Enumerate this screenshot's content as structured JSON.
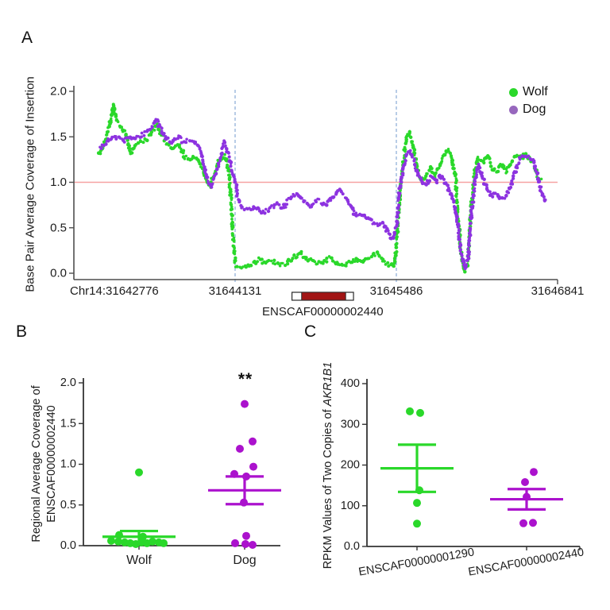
{
  "panels": {
    "a": {
      "letter": "A"
    },
    "b": {
      "letter": "B"
    },
    "c": {
      "letter": "C"
    }
  },
  "colors": {
    "wolf_green": "#2ad82a",
    "dog_trace_purple": "#8d33e0",
    "dog_legend_purple": "#9767bd",
    "dog_magenta": "#ab12cd",
    "reference_red": "#f6a2a2",
    "boundary_dashed_blue": "#7fa3d1",
    "gene_box_red": "#a11414",
    "axis_gray": "#4f4f4f"
  },
  "chart_data": [
    {
      "id": "A",
      "type": "line",
      "ylabel": "Base Pair Average Coverage of Insertion",
      "ylim": [
        0,
        2
      ],
      "xlim": [
        31642776,
        31646841
      ],
      "grid": false,
      "legend_position": "top-right",
      "reference_line_y": 1.0,
      "insertion_boundaries": [
        31644131,
        31645486
      ],
      "yticks": [
        {
          "label": "2.0",
          "value": 2.0
        },
        {
          "label": "1.5",
          "value": 1.5
        },
        {
          "label": "1.0",
          "value": 1.0
        },
        {
          "label": "0.5",
          "value": 0.5
        },
        {
          "label": "0.0",
          "value": 0.0
        }
      ],
      "xticks": [
        {
          "label": "Chr14:31642776",
          "pos": 31642776,
          "anchor": "start"
        },
        {
          "label": "31644131",
          "pos": 31644131,
          "anchor": "middle"
        },
        {
          "label": "31645486",
          "pos": 31645486,
          "anchor": "middle"
        },
        {
          "label": "31646841",
          "pos": 31646841,
          "anchor": "middle"
        }
      ],
      "legend": [
        {
          "label": "Wolf",
          "color": "#2ad82a"
        },
        {
          "label": "Dog",
          "color": "#9767bd"
        }
      ],
      "gene_track": {
        "label": "ENSCAF00000002440",
        "start": 31644609,
        "end": 31645126,
        "cds_start": 31644690,
        "cds_end": 31645060
      },
      "series": [
        {
          "name": "Wolf",
          "color": "#2ad82a",
          "points": [
            [
              31642991,
              1.3
            ],
            [
              31643040,
              1.45
            ],
            [
              31643085,
              1.7
            ],
            [
              31643109,
              1.85
            ],
            [
              31643138,
              1.67
            ],
            [
              31643174,
              1.6
            ],
            [
              31643215,
              1.52
            ],
            [
              31643252,
              1.32
            ],
            [
              31643292,
              1.42
            ],
            [
              31643341,
              1.45
            ],
            [
              31643394,
              1.48
            ],
            [
              31643435,
              1.55
            ],
            [
              31643471,
              1.63
            ],
            [
              31643508,
              1.52
            ],
            [
              31643556,
              1.42
            ],
            [
              31643609,
              1.38
            ],
            [
              31643658,
              1.42
            ],
            [
              31643707,
              1.28
            ],
            [
              31643756,
              1.25
            ],
            [
              31643804,
              1.28
            ],
            [
              31643853,
              1.18
            ],
            [
              31643890,
              1.02
            ],
            [
              31643922,
              0.95
            ],
            [
              31643963,
              1.12
            ],
            [
              31644008,
              1.27
            ],
            [
              31644044,
              1.3
            ],
            [
              31644077,
              1.12
            ],
            [
              31644101,
              0.72
            ],
            [
              31644117,
              0.35
            ],
            [
              31644131,
              0.1
            ],
            [
              31644154,
              0.05
            ],
            [
              31644211,
              0.07
            ],
            [
              31644272,
              0.1
            ],
            [
              31644329,
              0.15
            ],
            [
              31644390,
              0.12
            ],
            [
              31644447,
              0.13
            ],
            [
              31644508,
              0.1
            ],
            [
              31644565,
              0.11
            ],
            [
              31644626,
              0.18
            ],
            [
              31644682,
              0.22
            ],
            [
              31644743,
              0.15
            ],
            [
              31644800,
              0.11
            ],
            [
              31644861,
              0.12
            ],
            [
              31644918,
              0.17
            ],
            [
              31644979,
              0.12
            ],
            [
              31645036,
              0.08
            ],
            [
              31645097,
              0.12
            ],
            [
              31645154,
              0.15
            ],
            [
              31645215,
              0.13
            ],
            [
              31645272,
              0.18
            ],
            [
              31645325,
              0.21
            ],
            [
              31645374,
              0.13
            ],
            [
              31645435,
              0.08
            ],
            [
              31645471,
              0.1
            ],
            [
              31645486,
              0.3
            ],
            [
              31645508,
              0.7
            ],
            [
              31645540,
              1.2
            ],
            [
              31645573,
              1.5
            ],
            [
              31645593,
              1.55
            ],
            [
              31645626,
              1.4
            ],
            [
              31645658,
              1.18
            ],
            [
              31645691,
              1.02
            ],
            [
              31645731,
              1.05
            ],
            [
              31645772,
              1.15
            ],
            [
              31645808,
              1.08
            ],
            [
              31645849,
              1.18
            ],
            [
              31645890,
              1.3
            ],
            [
              31645922,
              1.36
            ],
            [
              31645955,
              1.25
            ],
            [
              31645983,
              1.05
            ],
            [
              31646008,
              0.55
            ],
            [
              31646036,
              0.12
            ],
            [
              31646061,
              0.02
            ],
            [
              31646089,
              0.1
            ],
            [
              31646113,
              0.7
            ],
            [
              31646142,
              1.1
            ],
            [
              31646174,
              1.28
            ],
            [
              31646211,
              1.22
            ],
            [
              31646252,
              1.3
            ],
            [
              31646292,
              1.15
            ],
            [
              31646333,
              1.12
            ],
            [
              31646369,
              1.2
            ],
            [
              31646410,
              1.12
            ],
            [
              31646451,
              1.22
            ],
            [
              31646491,
              1.3
            ],
            [
              31646528,
              1.27
            ],
            [
              31646569,
              1.3
            ],
            [
              31646609,
              1.26
            ],
            [
              31646642,
              1.18
            ],
            [
              31646674,
              1.08
            ],
            [
              31646707,
              1.0
            ]
          ]
        },
        {
          "name": "Dog",
          "color": "#8d33e0",
          "points": [
            [
              31642991,
              1.38
            ],
            [
              31643040,
              1.42
            ],
            [
              31643089,
              1.48
            ],
            [
              31643138,
              1.5
            ],
            [
              31643191,
              1.44
            ],
            [
              31643239,
              1.5
            ],
            [
              31643288,
              1.46
            ],
            [
              31643337,
              1.52
            ],
            [
              31643386,
              1.55
            ],
            [
              31643430,
              1.6
            ],
            [
              31643467,
              1.68
            ],
            [
              31643504,
              1.6
            ],
            [
              31643544,
              1.48
            ],
            [
              31643597,
              1.45
            ],
            [
              31643646,
              1.5
            ],
            [
              31643695,
              1.45
            ],
            [
              31643743,
              1.47
            ],
            [
              31643792,
              1.43
            ],
            [
              31643829,
              1.4
            ],
            [
              31643865,
              1.22
            ],
            [
              31643902,
              1.02
            ],
            [
              31643934,
              0.96
            ],
            [
              31643971,
              1.1
            ],
            [
              31644008,
              1.28
            ],
            [
              31644040,
              1.44
            ],
            [
              31644069,
              1.32
            ],
            [
              31644101,
              1.15
            ],
            [
              31644131,
              1.0
            ],
            [
              31644162,
              0.8
            ],
            [
              31644191,
              0.72
            ],
            [
              31644239,
              0.7
            ],
            [
              31644300,
              0.73
            ],
            [
              31644357,
              0.66
            ],
            [
              31644418,
              0.71
            ],
            [
              31644475,
              0.76
            ],
            [
              31644536,
              0.72
            ],
            [
              31644593,
              0.83
            ],
            [
              31644654,
              0.87
            ],
            [
              31644711,
              0.78
            ],
            [
              31644772,
              0.74
            ],
            [
              31644829,
              0.8
            ],
            [
              31644890,
              0.75
            ],
            [
              31644947,
              0.83
            ],
            [
              31645008,
              0.9
            ],
            [
              31645052,
              0.85
            ],
            [
              31645097,
              0.76
            ],
            [
              31645142,
              0.64
            ],
            [
              31645199,
              0.66
            ],
            [
              31645260,
              0.6
            ],
            [
              31645317,
              0.53
            ],
            [
              31645369,
              0.56
            ],
            [
              31645418,
              0.45
            ],
            [
              31645455,
              0.38
            ],
            [
              31645486,
              0.5
            ],
            [
              31645512,
              0.9
            ],
            [
              31645544,
              1.15
            ],
            [
              31645577,
              1.3
            ],
            [
              31645597,
              1.35
            ],
            [
              31645630,
              1.25
            ],
            [
              31645666,
              1.1
            ],
            [
              31645699,
              1.0
            ],
            [
              31645735,
              0.98
            ],
            [
              31645776,
              1.05
            ],
            [
              31645817,
              1.0
            ],
            [
              31645857,
              1.08
            ],
            [
              31645894,
              1.0
            ],
            [
              31645930,
              0.9
            ],
            [
              31645963,
              0.8
            ],
            [
              31645995,
              0.6
            ],
            [
              31646028,
              0.25
            ],
            [
              31646061,
              0.05
            ],
            [
              31646089,
              0.15
            ],
            [
              31646113,
              0.6
            ],
            [
              31646146,
              1.0
            ],
            [
              31646178,
              1.2
            ],
            [
              31646211,
              1.05
            ],
            [
              31646247,
              0.92
            ],
            [
              31646284,
              0.85
            ],
            [
              31646324,
              0.88
            ],
            [
              31646365,
              0.82
            ],
            [
              31646406,
              0.85
            ],
            [
              31646442,
              0.95
            ],
            [
              31646483,
              1.1
            ],
            [
              31646524,
              1.25
            ],
            [
              31646565,
              1.3
            ],
            [
              31646601,
              1.27
            ],
            [
              31646642,
              1.22
            ],
            [
              31646674,
              1.05
            ],
            [
              31646715,
              0.85
            ],
            [
              31646739,
              0.77
            ]
          ]
        }
      ]
    },
    {
      "id": "B",
      "type": "scatter",
      "ylabel_lines": [
        "Regional Average Coverage of",
        "ENSCAF00000002440"
      ],
      "ylim": [
        0,
        2
      ],
      "grid": false,
      "yticks": [
        {
          "label": "0.0",
          "value": 0.0
        },
        {
          "label": "0.5",
          "value": 0.5
        },
        {
          "label": "1.0",
          "value": 1.0
        },
        {
          "label": "1.5",
          "value": 1.5
        },
        {
          "label": "2.0",
          "value": 2.0
        }
      ],
      "groups": [
        {
          "name": "Wolf",
          "color": "#2ad82a",
          "mean": 0.11,
          "sem_low": 0.04,
          "sem_high": 0.18,
          "points": [
            [
              0.9,
              0
            ],
            [
              0.13,
              -25
            ],
            [
              0.11,
              5
            ],
            [
              0.06,
              -35
            ],
            [
              0.05,
              -26
            ],
            [
              0.04,
              -18
            ],
            [
              0.03,
              -11
            ],
            [
              0.02,
              -4
            ],
            [
              0.04,
              3
            ],
            [
              0.03,
              10
            ],
            [
              0.05,
              17
            ],
            [
              0.04,
              25
            ],
            [
              0.03,
              31
            ]
          ]
        },
        {
          "name": "Dog",
          "color": "#ab12cd",
          "mean": 0.68,
          "sem_low": 0.51,
          "sem_high": 0.85,
          "significance": "**",
          "points": [
            [
              1.74,
              0
            ],
            [
              1.28,
              10
            ],
            [
              1.19,
              -6
            ],
            [
              0.97,
              11
            ],
            [
              0.88,
              -13
            ],
            [
              0.85,
              2
            ],
            [
              0.53,
              -1
            ],
            [
              0.12,
              2
            ],
            [
              0.03,
              -12
            ],
            [
              0.02,
              1
            ],
            [
              0.01,
              10
            ]
          ]
        }
      ]
    },
    {
      "id": "C",
      "type": "scatter",
      "ylabel_prefix": "RPKM Values of Two Copies of ",
      "ylabel_gene": "AKR1B1",
      "ylim": [
        0,
        400
      ],
      "grid": false,
      "yticks": [
        {
          "label": "0.0",
          "value": 0
        },
        {
          "label": "100",
          "value": 100
        },
        {
          "label": "200",
          "value": 200
        },
        {
          "label": "300",
          "value": 300
        },
        {
          "label": "400",
          "value": 400
        }
      ],
      "groups": [
        {
          "name": "ENSCAF00000001290",
          "color": "#2ad82a",
          "mean": 192,
          "sem_low": 134,
          "sem_high": 250,
          "points": [
            [
              332,
              -9
            ],
            [
              328,
              4
            ],
            [
              138,
              3
            ],
            [
              107,
              0
            ],
            [
              56,
              0
            ]
          ]
        },
        {
          "name": "ENSCAF00000002440",
          "color": "#ab12cd",
          "mean": 116,
          "sem_low": 91,
          "sem_high": 141,
          "points": [
            [
              183,
              9
            ],
            [
              158,
              -2
            ],
            [
              122,
              0
            ],
            [
              57,
              -4
            ],
            [
              58,
              8
            ]
          ]
        }
      ]
    }
  ]
}
